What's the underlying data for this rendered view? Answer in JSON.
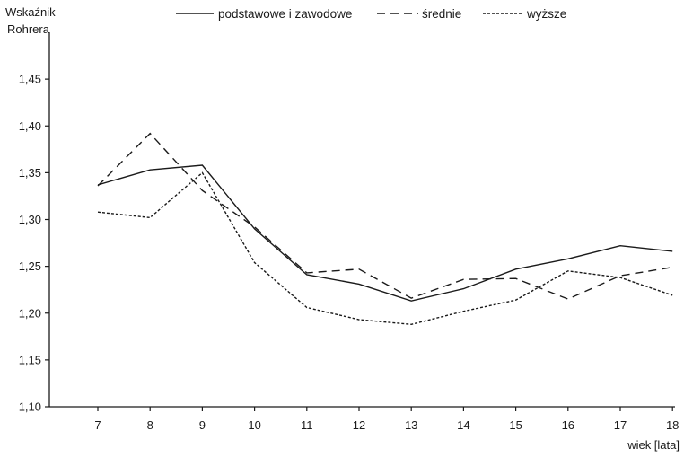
{
  "chart_data": {
    "type": "line",
    "ylabel_lines": [
      "Wskaźnik",
      "Rohrera"
    ],
    "xlabel": "wiek [lata]",
    "x": [
      7,
      8,
      9,
      10,
      11,
      12,
      13,
      14,
      15,
      16,
      17,
      18
    ],
    "ylim": [
      1.1,
      1.5
    ],
    "yticks": [
      "1,10",
      "1,15",
      "1,20",
      "1,25",
      "1,30",
      "1,35",
      "1,40",
      "1,45"
    ],
    "ytick_values": [
      1.1,
      1.15,
      1.2,
      1.25,
      1.3,
      1.35,
      1.4,
      1.45
    ],
    "grid": false,
    "legend_position": "top",
    "series": [
      {
        "name": "podstawowe i zawodowe",
        "style": "solid",
        "values": [
          1.337,
          1.353,
          1.358,
          1.29,
          1.241,
          1.231,
          1.213,
          1.226,
          1.247,
          1.258,
          1.272,
          1.266
        ]
      },
      {
        "name": "średnie",
        "style": "dashed",
        "values": [
          1.336,
          1.392,
          1.331,
          1.292,
          1.243,
          1.247,
          1.216,
          1.236,
          1.237,
          1.215,
          1.24,
          1.249
        ]
      },
      {
        "name": "wyższe",
        "style": "dotted",
        "values": [
          1.308,
          1.302,
          1.35,
          1.254,
          1.206,
          1.193,
          1.188,
          1.202,
          1.214,
          1.245,
          1.238,
          1.219
        ]
      }
    ],
    "line_color": "#1a1a1a"
  }
}
